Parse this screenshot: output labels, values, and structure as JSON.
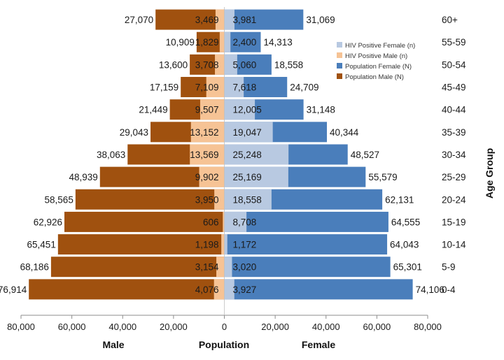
{
  "chart_data": {
    "type": "bar",
    "orientation": "horizontal",
    "subtype": "population-pyramid",
    "categories": [
      "0-4",
      "5-9",
      "10-14",
      "15-19",
      "20-24",
      "25-29",
      "30-34",
      "35-39",
      "40-44",
      "45-49",
      "50-54",
      "55-59",
      "60+"
    ],
    "series": [
      {
        "name": "HIV Positive Female (n)",
        "side": "female",
        "color": "#b8c9e1",
        "values": [
          3927,
          3020,
          1172,
          8708,
          18558,
          25169,
          25248,
          19047,
          12005,
          7618,
          5060,
          2400,
          3981
        ]
      },
      {
        "name": "HIV Positive Male (n)",
        "side": "male",
        "color": "#f6c395",
        "values": [
          4076,
          3154,
          1198,
          606,
          3950,
          9902,
          13569,
          13152,
          9507,
          7109,
          3708,
          1829,
          3469
        ]
      },
      {
        "name": "Population Female (N)",
        "side": "female",
        "color": "#4a7ebb",
        "values": [
          74106,
          65301,
          64043,
          64555,
          62131,
          55579,
          48527,
          40344,
          31148,
          24709,
          18558,
          14313,
          31069
        ]
      },
      {
        "name": "Population Male (N)",
        "side": "male",
        "color": "#a0510f",
        "values": [
          76914,
          68186,
          65451,
          62926,
          58565,
          48939,
          38063,
          29043,
          21449,
          17159,
          13600,
          10909,
          27070
        ]
      }
    ],
    "xlabel": "Population",
    "ylabel": "Age Group",
    "side_labels": {
      "left": "Male",
      "right": "Female"
    },
    "xlim": [
      -80000,
      80000
    ],
    "x_ticks": [
      "80,000",
      "60,000",
      "40,000",
      "20,000",
      "0",
      "20,000",
      "40,000",
      "60,000",
      "80,000"
    ],
    "legend_placement": "top-right",
    "grid": false
  }
}
